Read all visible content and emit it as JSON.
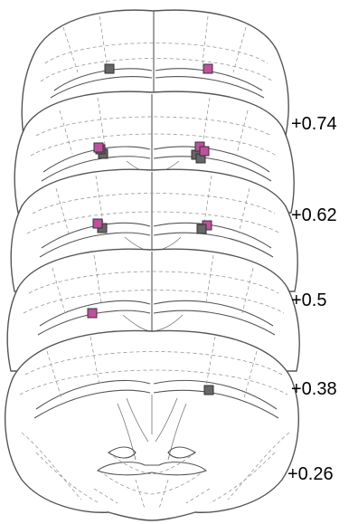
{
  "sections": [
    {
      "label": "+0.74"
    },
    {
      "label": "+0.62"
    },
    {
      "label": "+0.5"
    },
    {
      "label": "+0.38"
    },
    {
      "label": "+0.26"
    }
  ],
  "colors": {
    "magenta_marker": "#c0509d",
    "gray_marker": "#666666",
    "outline": "#555555",
    "dashed": "#999999"
  }
}
